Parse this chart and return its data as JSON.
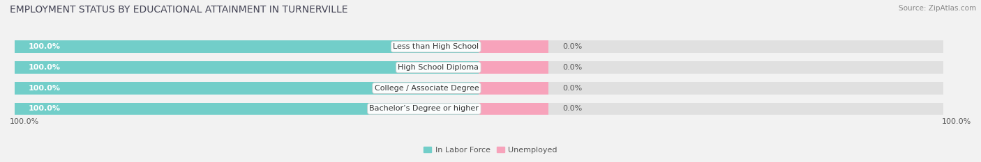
{
  "title": "EMPLOYMENT STATUS BY EDUCATIONAL ATTAINMENT IN TURNERVILLE",
  "source": "Source: ZipAtlas.com",
  "categories": [
    "Less than High School",
    "High School Diploma",
    "College / Associate Degree",
    "Bachelor’s Degree or higher"
  ],
  "labor_force_pct": [
    100.0,
    100.0,
    100.0,
    100.0
  ],
  "unemployed_pct": [
    0.0,
    0.0,
    0.0,
    0.0
  ],
  "bar_color_labor": "#72CEC9",
  "bar_color_unemployed": "#F7A3BB",
  "bg_color": "#f2f2f2",
  "plot_bg_color": "#ffffff",
  "bar_bg_color": "#e0e0e0",
  "title_fontsize": 10,
  "label_fontsize": 8,
  "tick_fontsize": 8,
  "legend_fontsize": 8,
  "source_fontsize": 7.5,
  "bar_height": 0.6,
  "total_width": 100,
  "legend_items": [
    "In Labor Force",
    "Unemployed"
  ],
  "left_tick": "100.0%",
  "right_tick": "100.0%",
  "title_color": "#444455",
  "source_color": "#888888",
  "label_color": "#555555",
  "white_text_color": "#ffffff",
  "box_label_color": "#333333"
}
